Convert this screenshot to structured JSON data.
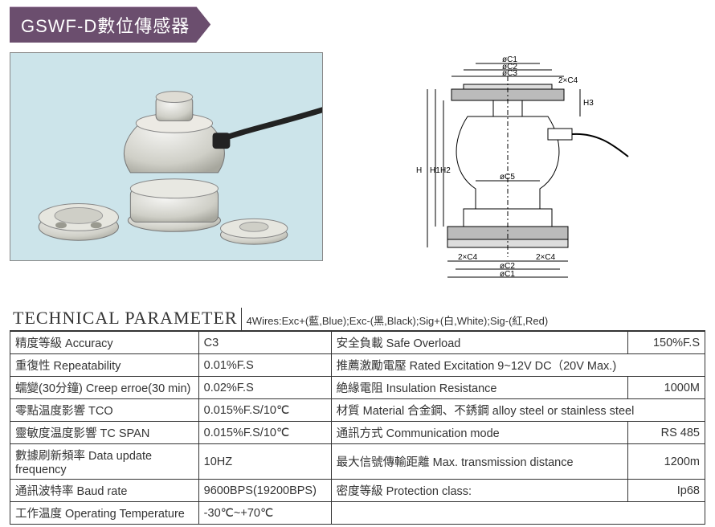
{
  "title": "GSWF-D數位傳感器",
  "section_header": "TECHNICAL PARAMETER",
  "wires_note": "4Wires:Exc+(藍,Blue);Exc-(黑,Black);Sig+(白,White);Sig-(紅,Red)",
  "colors": {
    "title_bg": "#6b4e6e",
    "title_text": "#ffffff",
    "photo_bg": "#cce4ea",
    "border": "#333333",
    "page_bg": "#ffffff"
  },
  "diagram_labels": {
    "oc1_top": "øC1",
    "oc2_top": "øC2",
    "oc3_top": "øC3",
    "two_x_c4_top": "2×C4",
    "h3": "H3",
    "h1": "H1",
    "h2": "H2",
    "h": "H",
    "oc5": "øC5",
    "two_x_c4_bot_l": "2×C4",
    "two_x_c4_bot_r": "2×C4",
    "oc2_bot": "øC2",
    "oc1_bot": "øC1"
  },
  "rows_left": [
    {
      "label": "精度等級 Accuracy",
      "value": "C3"
    },
    {
      "label": "重復性 Repeatability",
      "value": "0.01%F.S"
    },
    {
      "label": "蠕變(30分鐘) Creep erroe(30 min)",
      "value": "0.02%F.S"
    },
    {
      "label": "零點温度影響 TCO",
      "value": "0.015%F.S/10℃"
    },
    {
      "label": "靈敏度温度影響 TC SPAN",
      "value": "0.015%F.S/10℃"
    },
    {
      "label": "數據刷新頻率 Data update frequency",
      "value": "10HZ"
    },
    {
      "label": "通訊波特率 Baud rate",
      "value": "9600BPS(19200BPS)"
    },
    {
      "label": "工作温度 Operating Temperature",
      "value": "-30℃~+70℃"
    }
  ],
  "rows_right": [
    {
      "label": "安全負載 Safe Overload",
      "value": "150%F.S"
    },
    {
      "label": "推薦激勵電壓 Rated Excitation   9~12V DC（20V Max.)",
      "value": ""
    },
    {
      "label": "絶緣電阻 Insulation Resistance",
      "value": "1000M"
    },
    {
      "label": "材質 Material 合金鋼、不銹鋼 alloy steel or stainless steel",
      "value": ""
    },
    {
      "label": "通訊方式 Communication mode",
      "value": "RS 485"
    },
    {
      "label": "最大信號傳輸距離 Max. transmission distance",
      "value": "1200m"
    },
    {
      "label": "密度等級 Protection class:",
      "value": "Ip68"
    }
  ]
}
